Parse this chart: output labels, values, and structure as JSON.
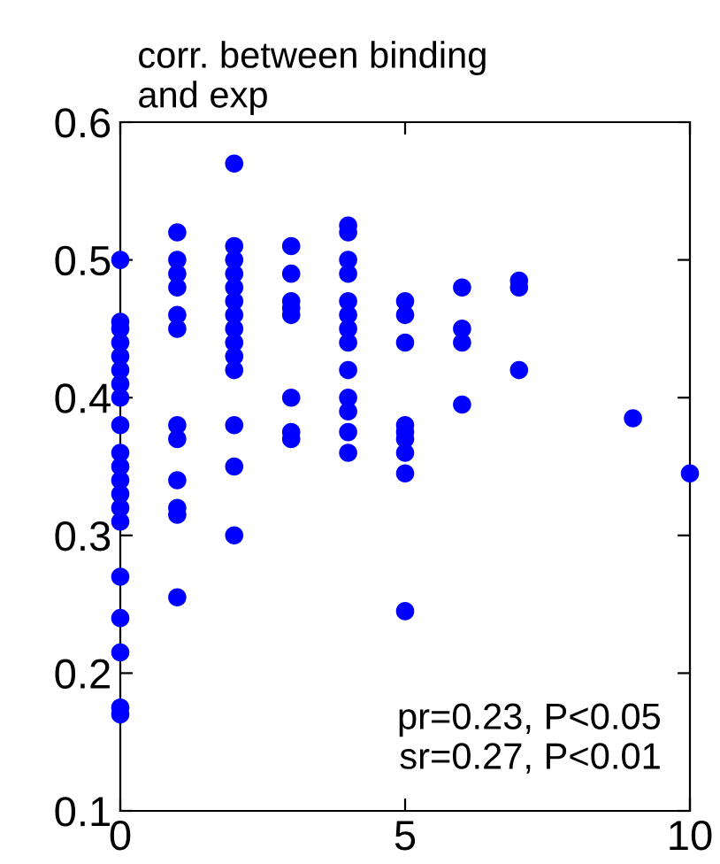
{
  "chart_data": {
    "type": "scatter",
    "title": "corr. between binding\nand exp",
    "series": [
      {
        "color": "#0000ff",
        "x": [
          0,
          0,
          0,
          0,
          0,
          0,
          0,
          0,
          0,
          0,
          0,
          0,
          0,
          0,
          0,
          0,
          0,
          0,
          0,
          0,
          1,
          1,
          1,
          1,
          1,
          1,
          1,
          1,
          1,
          1,
          1,
          1,
          2,
          2,
          2,
          2,
          2,
          2,
          2,
          2,
          2,
          2,
          2,
          2,
          2,
          2,
          3,
          3,
          3,
          3,
          3,
          3,
          3,
          3,
          4,
          4,
          4,
          4,
          4,
          4,
          4,
          4,
          4,
          4,
          4,
          4,
          4,
          5,
          5,
          5,
          5,
          5,
          5,
          5,
          5,
          5,
          6,
          6,
          6,
          6,
          7,
          7,
          7,
          9,
          10
        ],
        "values": [
          0.5,
          0.455,
          0.45,
          0.44,
          0.43,
          0.42,
          0.41,
          0.4,
          0.38,
          0.36,
          0.35,
          0.34,
          0.33,
          0.32,
          0.31,
          0.27,
          0.24,
          0.215,
          0.175,
          0.17,
          0.52,
          0.5,
          0.49,
          0.48,
          0.46,
          0.45,
          0.38,
          0.37,
          0.34,
          0.32,
          0.315,
          0.255,
          0.57,
          0.51,
          0.5,
          0.49,
          0.48,
          0.47,
          0.46,
          0.45,
          0.44,
          0.43,
          0.42,
          0.38,
          0.35,
          0.3,
          0.51,
          0.49,
          0.47,
          0.465,
          0.46,
          0.4,
          0.375,
          0.37,
          0.525,
          0.52,
          0.5,
          0.49,
          0.47,
          0.46,
          0.45,
          0.44,
          0.42,
          0.4,
          0.39,
          0.375,
          0.36,
          0.47,
          0.46,
          0.44,
          0.38,
          0.375,
          0.37,
          0.36,
          0.345,
          0.245,
          0.48,
          0.45,
          0.44,
          0.395,
          0.485,
          0.48,
          0.42,
          0.385,
          0.345
        ]
      }
    ],
    "xlim": [
      0,
      10
    ],
    "xticks": [
      0,
      5,
      10
    ],
    "ylim": [
      0.1,
      0.6
    ],
    "yticks": [
      {
        "value": 0.1,
        "label": "0.1"
      },
      {
        "value": 0.2,
        "label": "0.2"
      },
      {
        "value": 0.3,
        "label": "0.3"
      },
      {
        "value": 0.4,
        "label": "0.4"
      },
      {
        "value": 0.5,
        "label": "0.5"
      },
      {
        "value": 0.6,
        "label": "0.6"
      }
    ],
    "marker": "circle",
    "grid": false,
    "legend": false,
    "annotations": [
      "pr=0.23, P<0.05\nsr=0.27, P<0.01"
    ]
  }
}
